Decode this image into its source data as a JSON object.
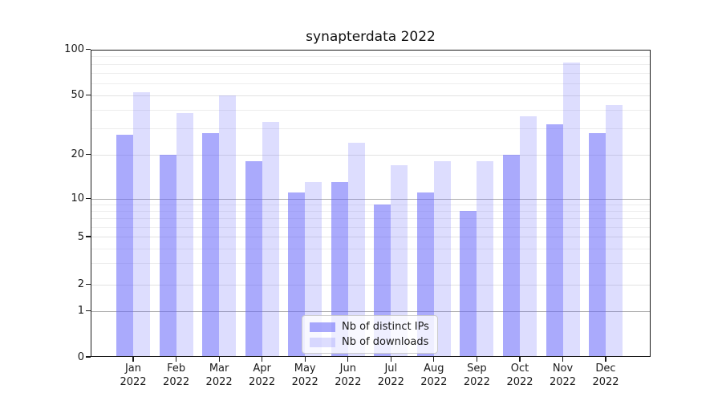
{
  "chart_data": {
    "type": "bar",
    "title": "synapterdata 2022",
    "xlabel": "",
    "ylabel": "",
    "scale": "symlog",
    "grid": true,
    "legend_position": "lower center",
    "ylim": [
      0,
      100
    ],
    "yticks": [
      0,
      1,
      2,
      5,
      10,
      20,
      50,
      100
    ],
    "categories": [
      "Jan",
      "Feb",
      "Mar",
      "Apr",
      "May",
      "Jun",
      "Jul",
      "Aug",
      "Sep",
      "Oct",
      "Nov",
      "Dec"
    ],
    "year_label": "2022",
    "series": [
      {
        "name": "Nb of distinct IPs",
        "color": "#6464fa",
        "opacity": 0.55,
        "values": [
          27,
          20,
          28,
          18,
          11,
          13,
          9,
          11,
          8,
          20,
          32,
          28
        ]
      },
      {
        "name": "Nb of downloads",
        "color": "#6464fa",
        "opacity": 0.22,
        "values": [
          52,
          38,
          50,
          33,
          13,
          24,
          17,
          18,
          18,
          36,
          82,
          43
        ]
      }
    ]
  },
  "colors": {
    "background": "#ffffff",
    "axis": "#1a1a1a",
    "grid_major": "#adadad",
    "grid_minor": "#ededed",
    "legend_border": "#cccccc"
  }
}
